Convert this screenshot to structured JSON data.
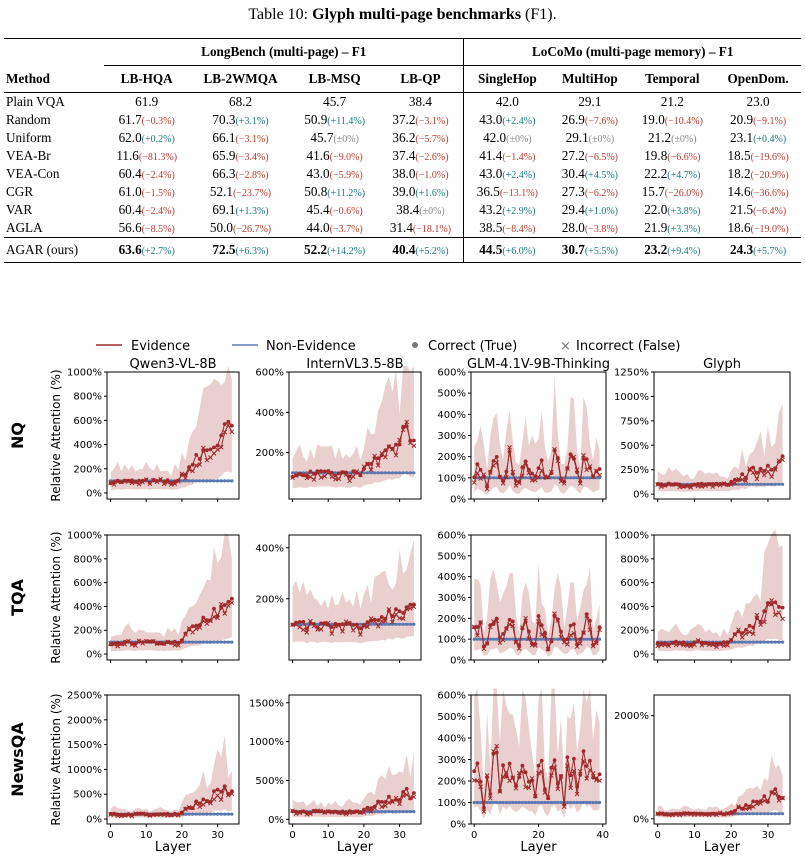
{
  "caption": {
    "prefix": "Table 10: ",
    "bold": "Glyph multi-page benchmarks",
    "suffix": " (F1)."
  },
  "table": {
    "method_header": "Method",
    "groups": [
      {
        "label": "LongBench (multi-page) – F1"
      },
      {
        "label": "LoCoMo (multi-page memory) – F1"
      }
    ],
    "columns": [
      "LB-HQA",
      "LB-2WMQA",
      "LB-MSQ",
      "LB-QP",
      "SingleHop",
      "MultiHop",
      "Temporal",
      "OpenDom."
    ],
    "rows": [
      {
        "method": "Plain VQA",
        "cells": [
          [
            "61.9",
            ""
          ],
          [
            "68.2",
            ""
          ],
          [
            "45.7",
            ""
          ],
          [
            "38.4",
            ""
          ],
          [
            "42.0",
            ""
          ],
          [
            "29.1",
            ""
          ],
          [
            "21.2",
            ""
          ],
          [
            "23.0",
            ""
          ]
        ]
      },
      {
        "method": "Random",
        "cells": [
          [
            "61.7",
            "(−0.3%)"
          ],
          [
            "70.3",
            "(+3.1%)"
          ],
          [
            "50.9",
            "(+11.4%)"
          ],
          [
            "37.2",
            "(−3.1%)"
          ],
          [
            "43.0",
            "(+2.4%)"
          ],
          [
            "26.9",
            "(−7.6%)"
          ],
          [
            "19.0",
            "(−10.4%)"
          ],
          [
            "20.9",
            "(−9.1%)"
          ]
        ]
      },
      {
        "method": "Uniform",
        "cells": [
          [
            "62.0",
            "(+0.2%)"
          ],
          [
            "66.1",
            "(−3.1%)"
          ],
          [
            "45.7",
            "(±0%)"
          ],
          [
            "36.2",
            "(−5.7%)"
          ],
          [
            "42.0",
            "(±0%)"
          ],
          [
            "29.1",
            "(±0%)"
          ],
          [
            "21.2",
            "(±0%)"
          ],
          [
            "23.1",
            "(+0.4%)"
          ]
        ]
      },
      {
        "method": "VEA-Br",
        "cells": [
          [
            "11.6",
            "(−81.3%)"
          ],
          [
            "65.9",
            "(−3.4%)"
          ],
          [
            "41.6",
            "(−9.0%)"
          ],
          [
            "37.4",
            "(−2.6%)"
          ],
          [
            "41.4",
            "(−1.4%)"
          ],
          [
            "27.2",
            "(−6.5%)"
          ],
          [
            "19.8",
            "(−6.6%)"
          ],
          [
            "18.5",
            "(−19.6%)"
          ]
        ]
      },
      {
        "method": "VEA-Con",
        "cells": [
          [
            "60.4",
            "(−2.4%)"
          ],
          [
            "66.3",
            "(−2.8%)"
          ],
          [
            "43.0",
            "(−5.9%)"
          ],
          [
            "38.0",
            "(−1.0%)"
          ],
          [
            "43.0",
            "(+2.4%)"
          ],
          [
            "30.4",
            "(+4.5%)"
          ],
          [
            "22.2",
            "(+4.7%)"
          ],
          [
            "18.2",
            "(−20.9%)"
          ]
        ]
      },
      {
        "method": "CGR",
        "cells": [
          [
            "61.0",
            "(−1.5%)"
          ],
          [
            "52.1",
            "(−23.7%)"
          ],
          [
            "50.8",
            "(+11.2%)"
          ],
          [
            "39.0",
            "(+1.6%)"
          ],
          [
            "36.5",
            "(−13.1%)"
          ],
          [
            "27.3",
            "(−6.2%)"
          ],
          [
            "15.7",
            "(−26.0%)"
          ],
          [
            "14.6",
            "(−36.6%)"
          ]
        ]
      },
      {
        "method": "VAR",
        "cells": [
          [
            "60.4",
            "(−2.4%)"
          ],
          [
            "69.1",
            "(+1.3%)"
          ],
          [
            "45.4",
            "(−0.6%)"
          ],
          [
            "38.4",
            "(±0%)"
          ],
          [
            "43.2",
            "(+2.9%)"
          ],
          [
            "29.4",
            "(+1.0%)"
          ],
          [
            "22.0",
            "(+3.8%)"
          ],
          [
            "21.5",
            "(−6.4%)"
          ]
        ]
      },
      {
        "method": "AGLA",
        "cells": [
          [
            "56.6",
            "(−8.5%)"
          ],
          [
            "50.0",
            "(−26.7%)"
          ],
          [
            "44.0",
            "(−3.7%)"
          ],
          [
            "31.4",
            "(−18.1%)"
          ],
          [
            "38.5",
            "(−8.4%)"
          ],
          [
            "28.0",
            "(−3.8%)"
          ],
          [
            "21.9",
            "(+3.3%)"
          ],
          [
            "18.6",
            "(−19.0%)"
          ]
        ]
      }
    ],
    "ours": {
      "method": "AGAR (ours)",
      "cells": [
        [
          "63.6",
          "(+2.7%)"
        ],
        [
          "72.5",
          "(+6.3%)"
        ],
        [
          "52.2",
          "(+14.2%)"
        ],
        [
          "40.4",
          "(+5.2%)"
        ],
        [
          "44.5",
          "(+6.0%)"
        ],
        [
          "30.7",
          "(+5.5%)"
        ],
        [
          "23.2",
          "(+9.4%)"
        ],
        [
          "24.3",
          "(+5.7%)"
        ]
      ]
    }
  },
  "figure": {
    "legend": [
      "Evidence",
      "Non-Evidence",
      "Correct (True)",
      "Incorrect (False)"
    ],
    "colors": {
      "evidence": "#9e2a2b",
      "non_evidence": "#5b78b0",
      "band_evidence": "#d9a8a8",
      "band_non": "#c7d3ea"
    },
    "models": [
      "Qwen3-VL-8B",
      "InternVL3.5-8B",
      "GLM-4.1V-9B-Thinking",
      "Glyph"
    ],
    "datasets": [
      "NQ",
      "TQA",
      "NewsQA"
    ],
    "ylabel": "Relative Attention (%)",
    "xlabel": "Layer",
    "x_ticks_35": [
      "0",
      "10",
      "20",
      "30"
    ],
    "x_ticks_40": [
      "0",
      "20",
      "40"
    ],
    "yticks": [
      [
        [
          "0%",
          "200%",
          "400%",
          "600%",
          "800%",
          "1000%"
        ],
        [
          "200%",
          "400%",
          "600%"
        ],
        [
          "0%",
          "100%",
          "200%",
          "300%",
          "400%",
          "500%",
          "600%"
        ],
        [
          "0%",
          "250%",
          "500%",
          "750%",
          "1000%",
          "1250%"
        ]
      ],
      [
        [
          "0%",
          "200%",
          "400%",
          "600%",
          "800%",
          "1000%"
        ],
        [
          "200%",
          "400%"
        ],
        [
          "0%",
          "100%",
          "200%",
          "300%",
          "400%",
          "500%",
          "600%"
        ],
        [
          "0%",
          "200%",
          "400%",
          "600%",
          "800%",
          "1000%"
        ]
      ],
      [
        [
          "0%",
          "500%",
          "1000%",
          "1500%",
          "2000%",
          "2500%"
        ],
        [
          "0%",
          "500%",
          "1000%",
          "1500%"
        ],
        [
          "0%",
          "100%",
          "200%",
          "300%",
          "400%",
          "500%",
          "600%"
        ],
        [
          "0%",
          "2000%"
        ]
      ]
    ]
  }
}
